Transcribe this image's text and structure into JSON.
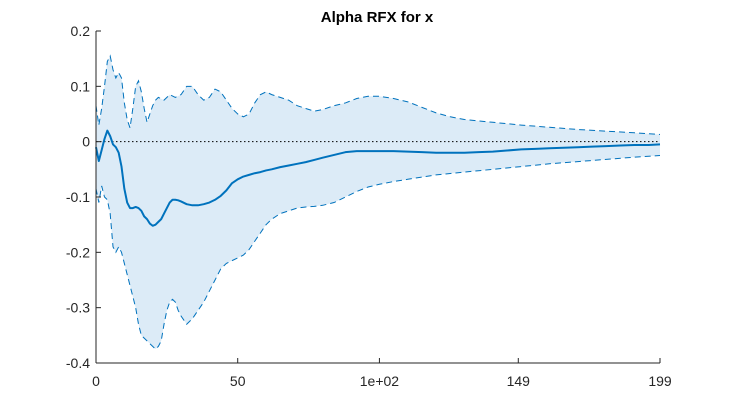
{
  "chart_data": {
    "type": "line",
    "title": "Alpha RFX for x",
    "xlabel": "",
    "ylabel": "",
    "xlim": [
      0,
      199
    ],
    "ylim": [
      -0.4,
      0.2
    ],
    "grid": false,
    "x_ticks": [
      0,
      50,
      100,
      149,
      199
    ],
    "x_tick_labels": [
      "0",
      "50",
      "1e+02",
      "149",
      "199"
    ],
    "y_ticks": [
      0.2,
      0.1,
      0,
      -0.1,
      -0.2,
      -0.3,
      -0.4
    ],
    "y_tick_labels": [
      "0.2",
      "0.1",
      "0",
      "-0.1",
      "-0.2",
      "-0.3",
      "-0.4"
    ],
    "reference_line": {
      "y": 0,
      "style": "dotted"
    },
    "colors": {
      "mean_line": "#0072BD",
      "band_fill": "#DCEBF7",
      "band_edge": "#0072BD",
      "reference": "#000000",
      "axis": "#262626"
    },
    "series": [
      {
        "role": "mean",
        "x": [
          0,
          1,
          2,
          3,
          4,
          5,
          6,
          7,
          8,
          9,
          10,
          11,
          12,
          13,
          14,
          15,
          16,
          17,
          18,
          19,
          20,
          21,
          22,
          23,
          24,
          25,
          26,
          27,
          28,
          29,
          30,
          32,
          34,
          36,
          38,
          40,
          42,
          44,
          46,
          48,
          50,
          52,
          54,
          56,
          58,
          60,
          62,
          65,
          68,
          71,
          74,
          77,
          80,
          84,
          88,
          92,
          96,
          100,
          105,
          110,
          115,
          120,
          125,
          130,
          135,
          140,
          145,
          150,
          155,
          160,
          165,
          170,
          175,
          180,
          185,
          190,
          195,
          199
        ],
        "y": [
          -0.01,
          -0.035,
          -0.015,
          0.005,
          0.02,
          0.01,
          -0.005,
          -0.01,
          -0.02,
          -0.045,
          -0.085,
          -0.11,
          -0.12,
          -0.12,
          -0.118,
          -0.12,
          -0.125,
          -0.135,
          -0.14,
          -0.148,
          -0.152,
          -0.15,
          -0.145,
          -0.14,
          -0.13,
          -0.12,
          -0.11,
          -0.105,
          -0.105,
          -0.106,
          -0.108,
          -0.113,
          -0.115,
          -0.115,
          -0.113,
          -0.11,
          -0.105,
          -0.098,
          -0.088,
          -0.075,
          -0.068,
          -0.063,
          -0.06,
          -0.057,
          -0.055,
          -0.052,
          -0.05,
          -0.046,
          -0.043,
          -0.04,
          -0.037,
          -0.033,
          -0.029,
          -0.024,
          -0.019,
          -0.017,
          -0.017,
          -0.017,
          -0.017,
          -0.018,
          -0.019,
          -0.02,
          -0.02,
          -0.02,
          -0.019,
          -0.018,
          -0.016,
          -0.014,
          -0.013,
          -0.012,
          -0.011,
          -0.01,
          -0.009,
          -0.008,
          -0.007,
          -0.006,
          -0.006,
          -0.005
        ]
      },
      {
        "role": "upper",
        "x": [
          0,
          1,
          2,
          3,
          4,
          5,
          6,
          7,
          8,
          9,
          10,
          11,
          12,
          13,
          14,
          15,
          16,
          17,
          18,
          19,
          20,
          21,
          22,
          24,
          26,
          28,
          30,
          32,
          34,
          36,
          38,
          40,
          42,
          44,
          46,
          48,
          50,
          52,
          54,
          56,
          58,
          60,
          62,
          65,
          68,
          71,
          74,
          77,
          80,
          84,
          88,
          92,
          96,
          100,
          105,
          110,
          115,
          120,
          125,
          130,
          140,
          150,
          160,
          170,
          180,
          190,
          199
        ],
        "y": [
          0.065,
          0.03,
          0.06,
          0.1,
          0.145,
          0.155,
          0.13,
          0.115,
          0.125,
          0.115,
          0.07,
          0.04,
          0.025,
          0.06,
          0.1,
          0.11,
          0.09,
          0.06,
          0.035,
          0.05,
          0.065,
          0.075,
          0.08,
          0.075,
          0.085,
          0.08,
          0.085,
          0.1,
          0.1,
          0.085,
          0.075,
          0.08,
          0.095,
          0.09,
          0.075,
          0.06,
          0.05,
          0.045,
          0.05,
          0.07,
          0.085,
          0.09,
          0.085,
          0.08,
          0.075,
          0.065,
          0.06,
          0.055,
          0.058,
          0.065,
          0.07,
          0.078,
          0.082,
          0.082,
          0.078,
          0.072,
          0.062,
          0.052,
          0.045,
          0.04,
          0.035,
          0.03,
          0.026,
          0.022,
          0.019,
          0.016,
          0.013
        ]
      },
      {
        "role": "lower",
        "x": [
          0,
          1,
          2,
          3,
          4,
          5,
          6,
          7,
          8,
          9,
          10,
          11,
          12,
          13,
          14,
          15,
          16,
          17,
          18,
          19,
          20,
          21,
          22,
          23,
          24,
          25,
          26,
          27,
          28,
          29,
          30,
          32,
          34,
          36,
          38,
          40,
          42,
          44,
          46,
          48,
          50,
          52,
          54,
          56,
          58,
          60,
          62,
          65,
          68,
          71,
          74,
          77,
          80,
          84,
          88,
          92,
          96,
          100,
          105,
          110,
          115,
          120,
          130,
          140,
          150,
          160,
          170,
          180,
          190,
          199
        ],
        "y": [
          -0.085,
          -0.11,
          -0.08,
          -0.1,
          -0.105,
          -0.13,
          -0.19,
          -0.2,
          -0.19,
          -0.2,
          -0.22,
          -0.24,
          -0.26,
          -0.28,
          -0.3,
          -0.33,
          -0.35,
          -0.355,
          -0.36,
          -0.365,
          -0.37,
          -0.375,
          -0.37,
          -0.36,
          -0.33,
          -0.305,
          -0.29,
          -0.285,
          -0.29,
          -0.305,
          -0.315,
          -0.33,
          -0.32,
          -0.305,
          -0.29,
          -0.27,
          -0.25,
          -0.23,
          -0.22,
          -0.215,
          -0.21,
          -0.205,
          -0.195,
          -0.18,
          -0.165,
          -0.15,
          -0.14,
          -0.13,
          -0.125,
          -0.12,
          -0.118,
          -0.117,
          -0.115,
          -0.11,
          -0.1,
          -0.09,
          -0.082,
          -0.077,
          -0.072,
          -0.068,
          -0.064,
          -0.06,
          -0.055,
          -0.05,
          -0.045,
          -0.04,
          -0.036,
          -0.032,
          -0.028,
          -0.025
        ]
      }
    ]
  }
}
